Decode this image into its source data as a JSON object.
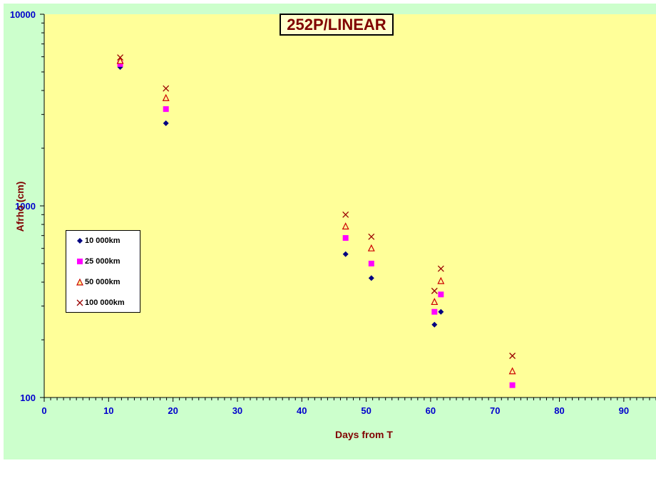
{
  "chart_data": {
    "type": "scatter",
    "title": "252P/LINEAR",
    "xlabel": "Days from  T",
    "ylabel": "Afrho (cm)",
    "xlim": [
      0,
      95
    ],
    "ylim": [
      100,
      10000
    ],
    "yscale": "log",
    "x_ticks": [
      0,
      10,
      20,
      30,
      40,
      50,
      60,
      70,
      80,
      90
    ],
    "y_ticks": [
      100,
      1000,
      10000
    ],
    "legend_position": "left",
    "grid": false,
    "series": [
      {
        "name": "10 000km",
        "marker": "diamond",
        "color": "#000080",
        "x": [
          11.8,
          18.9,
          46.8,
          50.8,
          60.6,
          61.6
        ],
        "y": [
          5300,
          2700,
          560,
          420,
          240,
          280
        ]
      },
      {
        "name": "25 000km",
        "marker": "square",
        "color": "#ff00ff",
        "x": [
          11.8,
          18.9,
          46.8,
          50.8,
          60.6,
          61.6,
          72.7
        ],
        "y": [
          5500,
          3200,
          680,
          500,
          280,
          345,
          116
        ]
      },
      {
        "name": "50 000km",
        "marker": "triangle",
        "color": "#cc0000",
        "x": [
          11.8,
          18.9,
          46.8,
          50.8,
          60.6,
          61.6,
          72.7
        ],
        "y": [
          5700,
          3650,
          780,
          600,
          315,
          405,
          137
        ]
      },
      {
        "name": "100 000km",
        "marker": "x",
        "color": "#990000",
        "x": [
          11.8,
          18.9,
          46.8,
          50.8,
          60.6,
          61.6,
          72.7
        ],
        "y": [
          5950,
          4100,
          900,
          690,
          360,
          470,
          165
        ]
      }
    ]
  }
}
